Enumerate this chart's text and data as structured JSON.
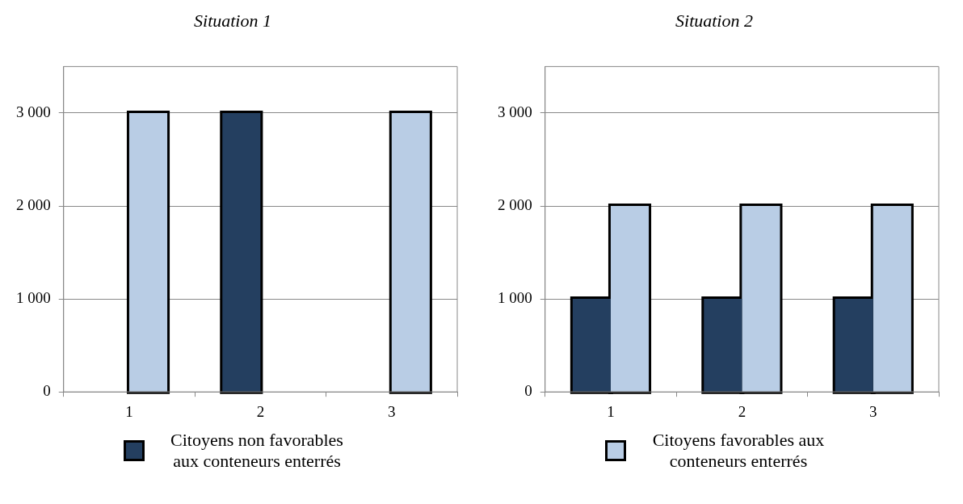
{
  "chart_data": [
    {
      "type": "bar",
      "title": "Situation 1",
      "categories": [
        "1",
        "2",
        "3"
      ],
      "series": [
        {
          "name": "Citoyens non favorables aux conteneurs enterrés",
          "color": "#243f60",
          "values": [
            0,
            3000,
            0
          ]
        },
        {
          "color": "#b9cde5",
          "values": [
            3000,
            0,
            3000
          ]
        }
      ],
      "ylim": [
        0,
        3500
      ],
      "yticks": [
        {
          "value": 0,
          "label": "0"
        },
        {
          "value": 1000,
          "label": "1 000"
        },
        {
          "value": 2000,
          "label": "2 000"
        },
        {
          "value": 3000,
          "label": "3 000"
        }
      ],
      "grid": "y",
      "legend": "bottom"
    },
    {
      "type": "bar",
      "title": "Situation 2",
      "categories": [
        "1",
        "2",
        "3"
      ],
      "series": [
        {
          "color": "#243f60",
          "values": [
            1000,
            1000,
            1000
          ]
        },
        {
          "name": "Citoyens favorables aux conteneurs enterrés",
          "color": "#b9cde5",
          "values": [
            2000,
            2000,
            2000
          ]
        }
      ],
      "ylim": [
        0,
        3500
      ],
      "yticks": [
        {
          "value": 0,
          "label": "0"
        },
        {
          "value": 1000,
          "label": "1 000"
        },
        {
          "value": 2000,
          "label": "2 000"
        },
        {
          "value": 3000,
          "label": "3 000"
        }
      ],
      "grid": "y",
      "legend": "bottom"
    }
  ]
}
